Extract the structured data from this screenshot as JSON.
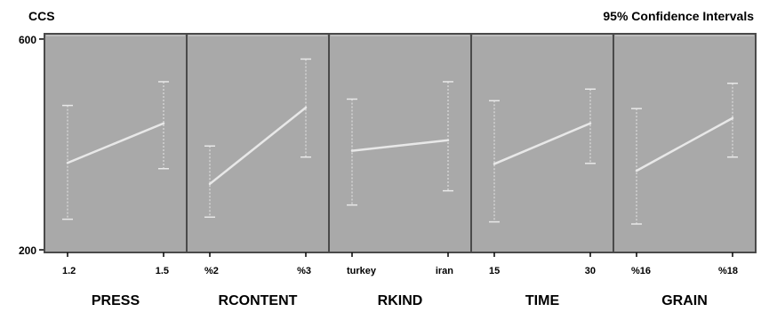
{
  "header": {
    "left_title": "CCS",
    "right_title": "95% Confidence Intervals"
  },
  "chart_data": {
    "type": "line",
    "ylabel": "CCS",
    "annotation": "95% Confidence Intervals",
    "ylim": [
      195,
      610
    ],
    "yticks": [
      200,
      600
    ],
    "grid": false,
    "colors": {
      "panel_bg": "#a9a9a9",
      "line": "#e8e8e8",
      "frame": "#4a4a4a"
    },
    "panels": [
      {
        "factor": "PRESS",
        "levels": [
          "1.2",
          "1.5"
        ],
        "means": [
          365,
          440
        ],
        "lower": [
          258,
          354
        ],
        "upper": [
          474,
          519
        ]
      },
      {
        "factor": "RCONTENT",
        "levels": [
          "%2",
          "%3"
        ],
        "means": [
          325,
          470
        ],
        "lower": [
          262,
          376
        ],
        "upper": [
          397,
          562
        ]
      },
      {
        "factor": "RKIND",
        "levels": [
          "turkey",
          "iran"
        ],
        "means": [
          388,
          408
        ],
        "lower": [
          285,
          312
        ],
        "upper": [
          486,
          519
        ]
      },
      {
        "factor": "TIME",
        "levels": [
          "15",
          "30"
        ],
        "means": [
          363,
          440
        ],
        "lower": [
          253,
          364
        ],
        "upper": [
          483,
          505
        ]
      },
      {
        "factor": "GRAIN",
        "levels": [
          "%16",
          "%18"
        ],
        "means": [
          350,
          450
        ],
        "lower": [
          249,
          376
        ],
        "upper": [
          468,
          516
        ]
      }
    ]
  }
}
